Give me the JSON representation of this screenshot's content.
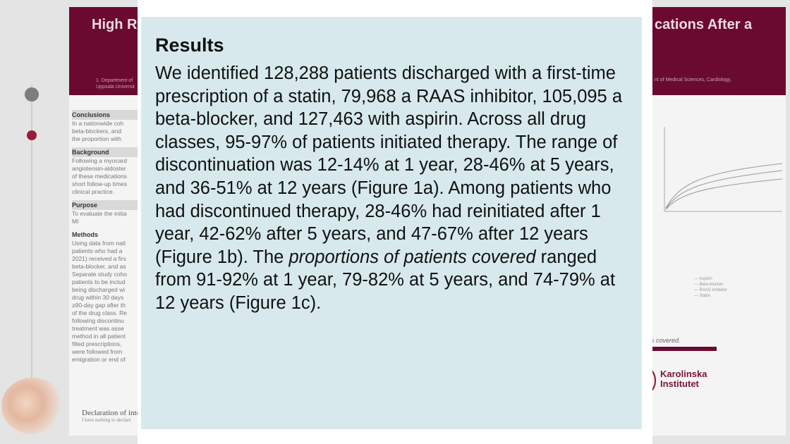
{
  "poster": {
    "title_left": "High R",
    "title_right": "cations After a",
    "affiliation_left": "1. Department of Uppsala Universit",
    "affiliation_right": "nt of Medical Sciences, Cardiology,",
    "sections": [
      {
        "heading": "Conclusions",
        "lines": [
          "In a nationwide coh",
          "beta-blockers, and",
          "the proportion with"
        ]
      },
      {
        "heading": "Background",
        "lines": [
          "Following a myocard",
          "angiotensin-aldoster",
          "of these medications",
          "short follow-up times",
          "clinical practice."
        ]
      },
      {
        "heading": "Purpose",
        "lines": [
          "To evaluate the initia",
          "MI"
        ]
      },
      {
        "heading": "Methods",
        "lines": [
          "Using data from nati",
          "patients who had a",
          "2021) received a firs",
          "beta-blocker, and as",
          "Separate study coho",
          "patients to be includ",
          "being discharged wi",
          "drug within 30 days",
          "≥90-day gap after th",
          "of the drug class. Re",
          "following discontinu",
          "treatment was asse",
          "method in all patient",
          "filled prescriptions,",
          "were followed from",
          "emigration or end of"
        ]
      }
    ],
    "declaration_title": "Declaration of inte",
    "declaration_text": "I have nothing to declare",
    "legend": [
      "Aspirin",
      "Beta-blocker",
      "RAAS inhibitor",
      "Statin"
    ],
    "caption_right": "(c) proportion of patients covered.",
    "logo_text": "Karolinska Institutet"
  },
  "card": {
    "title": "Results",
    "body_part1": "We identified 128,288 patients discharged with a first-time prescription of a statin, 79,968 a RAAS inhibitor, 105,095 a beta-blocker, and 127,463 with aspirin. Across all drug classes, 95-97% of patients initiated therapy. The range of discontinuation was 12-14% at 1 year, 28-46% at 5 years, and 36-51% at 12 years (Figure 1a). Among patients who had discontinued therapy, 28-46% had reinitiated after 1 year, 42-62% after 5 years, and 47-67% after 12 years (Figure 1b). The ",
    "body_emphasis": "proportions of patients covered",
    "body_part2": " ranged from 91-92% at 1 year, 79-82% at 5 years, and 74-79% at 12 years (Figure 1c)."
  },
  "colors": {
    "header": "#6b0a30",
    "card_bg": "#d7e9ec",
    "accent_dot": "#9a1b3c"
  }
}
